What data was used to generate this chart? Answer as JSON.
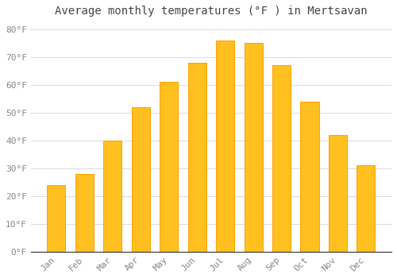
{
  "title": "Average monthly temperatures (°F ) in Mertsavan",
  "months": [
    "Jan",
    "Feb",
    "Mar",
    "Apr",
    "May",
    "Jun",
    "Jul",
    "Aug",
    "Sep",
    "Oct",
    "Nov",
    "Dec"
  ],
  "values": [
    24,
    28,
    40,
    52,
    61,
    68,
    76,
    75,
    67,
    54,
    42,
    31
  ],
  "bar_color": "#FFC020",
  "bar_edge_color": "#FFA000",
  "background_color": "#FFFFFF",
  "grid_color": "#DDDDDD",
  "ylim": [
    0,
    83
  ],
  "yticks": [
    0,
    10,
    20,
    30,
    40,
    50,
    60,
    70,
    80
  ],
  "ytick_labels": [
    "0°F",
    "10°F",
    "20°F",
    "30°F",
    "40°F",
    "50°F",
    "60°F",
    "70°F",
    "80°F"
  ],
  "title_fontsize": 10,
  "tick_fontsize": 8,
  "title_color": "#444444",
  "tick_color": "#888888",
  "axis_line_color": "#333333"
}
